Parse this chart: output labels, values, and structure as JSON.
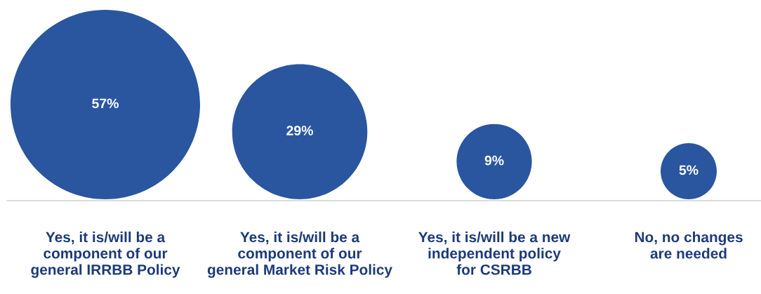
{
  "chart_data": {
    "type": "other",
    "categories": [
      "Yes, it is/will be a\ncomponent of our\ngeneral IRRBB Policy",
      "Yes, it is/will be a\ncomponent of our\ngeneral Market Risk Policy",
      "Yes, it is/will be a new\nindependent policy\nfor CSRBB",
      "No, no changes\nare needed"
    ],
    "values": [
      57,
      29,
      9,
      5
    ],
    "value_labels": [
      "57%",
      "29%",
      "9%",
      "5%"
    ],
    "color": "#2a56a0"
  }
}
